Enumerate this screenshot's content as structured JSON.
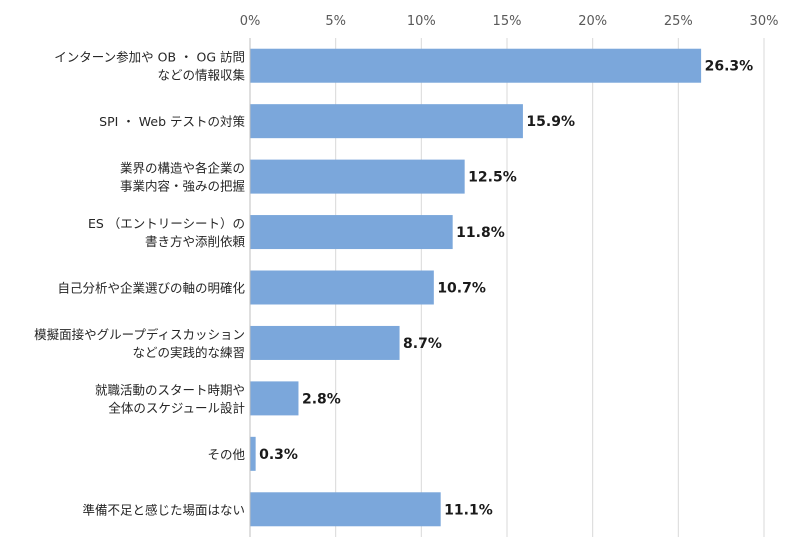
{
  "chart_data": {
    "type": "bar",
    "orientation": "horizontal",
    "categories": [
      [
        "インターン参加や OB ・ OG 訪問",
        "などの情報収集"
      ],
      [
        "SPI ・ Web テストの対策"
      ],
      [
        "業界の構造や各企業の",
        "事業内容・強みの把握"
      ],
      [
        "ES （エントリーシート）の",
        "書き方や添削依頼"
      ],
      [
        "自己分析や企業選びの軸の明確化"
      ],
      [
        "模擬面接やグループディスカッション",
        "などの実践的な練習"
      ],
      [
        "就職活動のスタート時期や",
        "全体のスケジュール設計"
      ],
      [
        "その他"
      ],
      [
        "準備不足と感じた場面はない"
      ]
    ],
    "values": [
      26.3,
      15.9,
      12.5,
      11.8,
      10.7,
      8.7,
      2.8,
      0.3,
      11.1
    ],
    "value_labels": [
      "26.3%",
      "15.9%",
      "12.5%",
      "11.8%",
      "10.7%",
      "8.7%",
      "2.8%",
      "0.3%",
      "11.1%"
    ],
    "xlim": [
      0,
      30
    ],
    "x_ticks": [
      0,
      5,
      10,
      15,
      20,
      25,
      30
    ],
    "x_tick_labels": [
      "0%",
      "5%",
      "10%",
      "15%",
      "20%",
      "25%",
      "30%"
    ],
    "x_axis_position": "top",
    "grid": true,
    "legend": "none",
    "bar_color": "#7ba7db",
    "title": "",
    "xlabel": "",
    "ylabel": ""
  }
}
